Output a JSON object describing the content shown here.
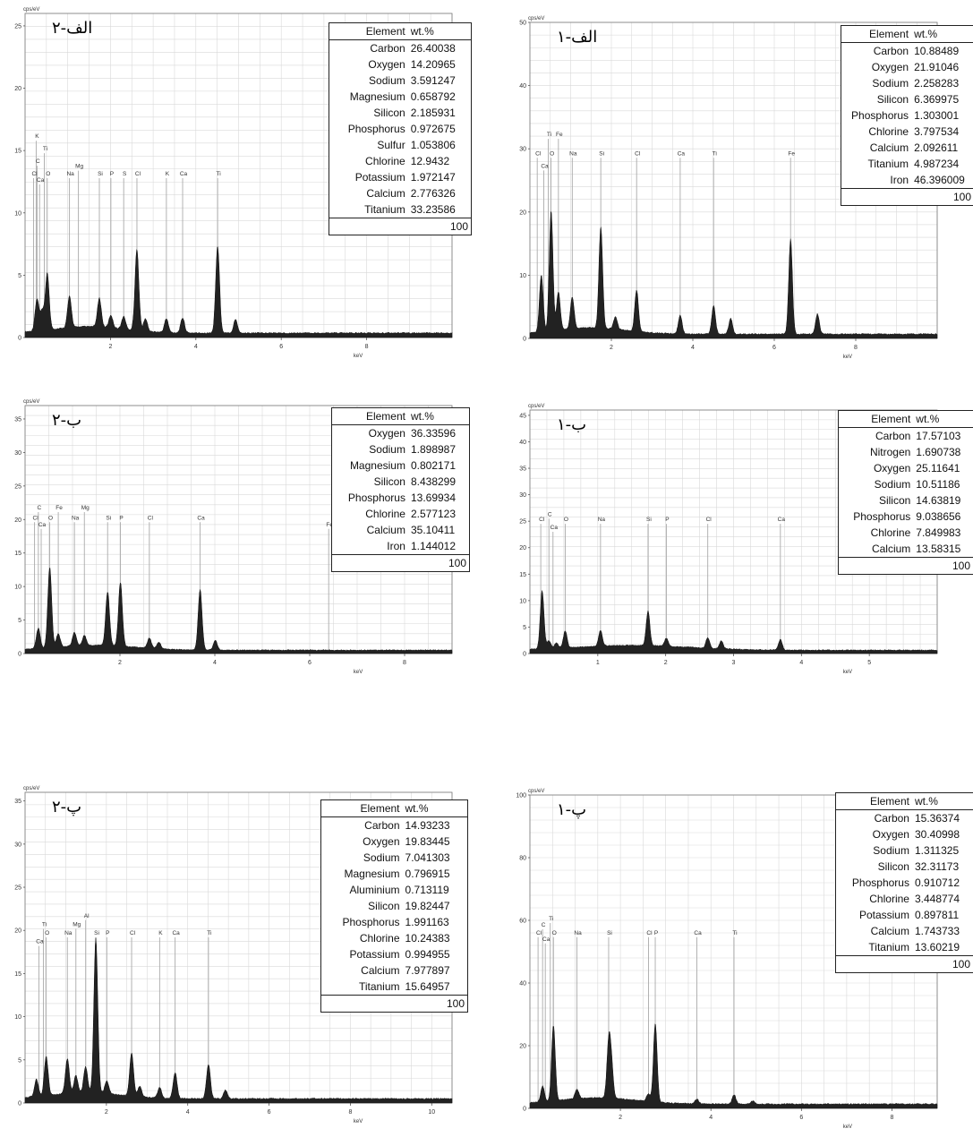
{
  "panels": [
    {
      "id": "alef-2",
      "tag": "الف-۲",
      "y_unit": "cps/eV",
      "x_unit": "keV",
      "table": {
        "header_element": "Element",
        "header_wt": "wt.%",
        "rows": [
          [
            "Carbon",
            "26.40038"
          ],
          [
            "Oxygen",
            "14.20965"
          ],
          [
            "Sodium",
            "3.591247"
          ],
          [
            "Magnesium",
            "0.658792"
          ],
          [
            "Silicon",
            "2.185931"
          ],
          [
            "Phosphorus",
            "0.972675"
          ],
          [
            "Sulfur",
            "1.053806"
          ],
          [
            "Chlorine",
            "12.9432"
          ],
          [
            "Potassium",
            "1.972147"
          ],
          [
            "Calcium",
            "2.776326"
          ],
          [
            "Titanium",
            "33.23586"
          ]
        ],
        "total": "100"
      }
    },
    {
      "id": "alef-1",
      "tag": "الف-۱",
      "y_unit": "cps/eV",
      "x_unit": "keV",
      "table": {
        "header_element": "Element",
        "header_wt": "wt.%",
        "rows": [
          [
            "Carbon",
            "10.88489"
          ],
          [
            "Oxygen",
            "21.91046"
          ],
          [
            "Sodium",
            "2.258283"
          ],
          [
            "Silicon",
            "6.369975"
          ],
          [
            "Phosphorus",
            "1.303001"
          ],
          [
            "Chlorine",
            "3.797534"
          ],
          [
            "Calcium",
            "2.092611"
          ],
          [
            "Titanium",
            "4.987234"
          ],
          [
            "Iron",
            "46.396009"
          ]
        ],
        "total": "100"
      }
    },
    {
      "id": "be-2",
      "tag": "ب-۲",
      "y_unit": "cps/eV",
      "x_unit": "keV",
      "table": {
        "header_element": "Element",
        "header_wt": "wt.%",
        "rows": [
          [
            "Oxygen",
            "36.33596"
          ],
          [
            "Sodium",
            "1.898987"
          ],
          [
            "Magnesium",
            "0.802171"
          ],
          [
            "Silicon",
            "8.438299"
          ],
          [
            "Phosphorus",
            "13.69934"
          ],
          [
            "Chlorine",
            "2.577123"
          ],
          [
            "Calcium",
            "35.10411"
          ],
          [
            "Iron",
            "1.144012"
          ]
        ],
        "total": "100"
      }
    },
    {
      "id": "be-1",
      "tag": "ب-۱",
      "y_unit": "cps/eV",
      "x_unit": "keV",
      "table": {
        "header_element": "Element",
        "header_wt": "wt.%",
        "rows": [
          [
            "Carbon",
            "17.57103"
          ],
          [
            "Nitrogen",
            "1.690738"
          ],
          [
            "Oxygen",
            "25.11641"
          ],
          [
            "Sodium",
            "10.51186"
          ],
          [
            "Silicon",
            "14.63819"
          ],
          [
            "Phosphorus",
            "9.038656"
          ],
          [
            "Chlorine",
            "7.849983"
          ],
          [
            "Calcium",
            "13.58315"
          ]
        ],
        "total": "100"
      }
    },
    {
      "id": "pe-2",
      "tag": "پ-۲",
      "y_unit": "cps/eV",
      "x_unit": "keV",
      "table": {
        "header_element": "Element",
        "header_wt": "wt.%",
        "rows": [
          [
            "Carbon",
            "14.93233"
          ],
          [
            "Oxygen",
            "19.83445"
          ],
          [
            "Sodium",
            "7.041303"
          ],
          [
            "Magnesium",
            "0.796915"
          ],
          [
            "Aluminium",
            "0.713119"
          ],
          [
            "Silicon",
            "19.82447"
          ],
          [
            "Phosphorus",
            "1.991163"
          ],
          [
            "Chlorine",
            "10.24383"
          ],
          [
            "Potassium",
            "0.994955"
          ],
          [
            "Calcium",
            "7.977897"
          ],
          [
            "Titanium",
            "15.64957"
          ]
        ],
        "total": "100"
      }
    },
    {
      "id": "pe-1",
      "tag": "پ-۱",
      "y_unit": "cps/eV",
      "x_unit": "keV",
      "table": {
        "header_element": "Element",
        "header_wt": "wt.%",
        "rows": [
          [
            "Carbon",
            "15.36374"
          ],
          [
            "Oxygen",
            "30.40998"
          ],
          [
            "Sodium",
            "1.311325"
          ],
          [
            "Silicon",
            "32.31173"
          ],
          [
            "Phosphorus",
            "0.910712"
          ],
          [
            "Chlorine",
            "3.448774"
          ],
          [
            "Potassium",
            "0.897811"
          ],
          [
            "Calcium",
            "1.743733"
          ],
          [
            "Titanium",
            "13.60219"
          ]
        ],
        "total": "100"
      }
    }
  ],
  "chart_data": [
    {
      "type": "line",
      "panel": "alef-2",
      "ylabel": "cps/eV",
      "xlabel": "keV",
      "xlim": [
        0,
        10
      ],
      "ylim": [
        0,
        26
      ],
      "grid": true,
      "x_ticks": [
        "2",
        "4",
        "6",
        "8"
      ],
      "y_ticks": [
        "0",
        "5",
        "10",
        "15",
        "20",
        "25"
      ],
      "element_markers": [
        {
          "label": "K",
          "x": 0.26,
          "y": 16
        },
        {
          "label": "Ti",
          "x": 0.45,
          "y": 15
        },
        {
          "label": "C",
          "x": 0.28,
          "y": 14
        },
        {
          "label": "Cl",
          "x": 0.2,
          "y": 13
        },
        {
          "label": "O",
          "x": 0.52,
          "y": 13
        },
        {
          "label": "Ca",
          "x": 0.34,
          "y": 12.5
        },
        {
          "label": "Na",
          "x": 1.04,
          "y": 13
        },
        {
          "label": "Mg",
          "x": 1.25,
          "y": 13.6
        },
        {
          "label": "Si",
          "x": 1.74,
          "y": 13
        },
        {
          "label": "P",
          "x": 2.01,
          "y": 13
        },
        {
          "label": "S",
          "x": 2.31,
          "y": 13
        },
        {
          "label": "Cl",
          "x": 2.62,
          "y": 13
        },
        {
          "label": "K",
          "x": 3.31,
          "y": 13
        },
        {
          "label": "Ca",
          "x": 3.69,
          "y": 13
        },
        {
          "label": "Ti",
          "x": 4.51,
          "y": 13
        }
      ],
      "peaks": [
        {
          "x": 0.28,
          "y": 2.5
        },
        {
          "x": 0.4,
          "y": 1.5
        },
        {
          "x": 0.52,
          "y": 4.5
        },
        {
          "x": 1.04,
          "y": 2.5
        },
        {
          "x": 1.74,
          "y": 2.3
        },
        {
          "x": 2.01,
          "y": 1
        },
        {
          "x": 2.31,
          "y": 1
        },
        {
          "x": 2.62,
          "y": 6.5
        },
        {
          "x": 2.82,
          "y": 1
        },
        {
          "x": 3.31,
          "y": 1.1
        },
        {
          "x": 3.69,
          "y": 1.2
        },
        {
          "x": 4.51,
          "y": 7
        },
        {
          "x": 4.93,
          "y": 1.1
        }
      ]
    },
    {
      "type": "line",
      "panel": "alef-1",
      "ylabel": "cps/eV",
      "xlabel": "keV",
      "xlim": [
        0,
        10
      ],
      "ylim": [
        0,
        50
      ],
      "grid": true,
      "x_ticks": [
        "2",
        "4",
        "6",
        "8"
      ],
      "y_ticks": [
        "0",
        "10",
        "20",
        "30",
        "40",
        "50"
      ],
      "element_markers": [
        {
          "label": "Ti",
          "x": 0.45,
          "y": 32
        },
        {
          "label": "Fe",
          "x": 0.7,
          "y": 32
        },
        {
          "label": "Cl",
          "x": 0.18,
          "y": 29
        },
        {
          "label": "O",
          "x": 0.52,
          "y": 29
        },
        {
          "label": "Ca",
          "x": 0.34,
          "y": 27
        },
        {
          "label": "Na",
          "x": 1.04,
          "y": 29
        },
        {
          "label": "Si",
          "x": 1.74,
          "y": 29
        },
        {
          "label": "Cl",
          "x": 2.62,
          "y": 29
        },
        {
          "label": "Ca",
          "x": 3.69,
          "y": 29
        },
        {
          "label": "Ti",
          "x": 4.51,
          "y": 29
        },
        {
          "label": "Fe",
          "x": 6.4,
          "y": 29
        }
      ],
      "peaks": [
        {
          "x": 0.28,
          "y": 9
        },
        {
          "x": 0.52,
          "y": 19
        },
        {
          "x": 0.7,
          "y": 6
        },
        {
          "x": 1.04,
          "y": 5
        },
        {
          "x": 1.74,
          "y": 16
        },
        {
          "x": 2.1,
          "y": 2
        },
        {
          "x": 2.62,
          "y": 6.5
        },
        {
          "x": 3.69,
          "y": 3
        },
        {
          "x": 4.51,
          "y": 4.5
        },
        {
          "x": 4.93,
          "y": 2.5
        },
        {
          "x": 6.4,
          "y": 15
        },
        {
          "x": 7.06,
          "y": 3.2
        }
      ]
    },
    {
      "type": "line",
      "panel": "be-2",
      "ylabel": "cps/eV",
      "xlabel": "keV",
      "xlim": [
        0,
        9
      ],
      "ylim": [
        0,
        37
      ],
      "grid": true,
      "x_ticks": [
        "2",
        "4",
        "6",
        "8"
      ],
      "y_ticks": [
        "0",
        "5",
        "10",
        "15",
        "20",
        "25",
        "30",
        "35"
      ],
      "element_markers": [
        {
          "label": "C",
          "x": 0.28,
          "y": 21.5
        },
        {
          "label": "Fe",
          "x": 0.7,
          "y": 21.5
        },
        {
          "label": "Mg",
          "x": 1.25,
          "y": 21.5
        },
        {
          "label": "Cl",
          "x": 0.2,
          "y": 20
        },
        {
          "label": "O",
          "x": 0.52,
          "y": 20
        },
        {
          "label": "Na",
          "x": 1.04,
          "y": 20
        },
        {
          "label": "Si",
          "x": 1.74,
          "y": 20
        },
        {
          "label": "P",
          "x": 2.01,
          "y": 20
        },
        {
          "label": "Cl",
          "x": 2.62,
          "y": 20
        },
        {
          "label": "Ca",
          "x": 3.69,
          "y": 20
        },
        {
          "label": "Ca",
          "x": 0.34,
          "y": 19
        },
        {
          "label": "Fe",
          "x": 6.4,
          "y": 19
        }
      ],
      "peaks": [
        {
          "x": 0.28,
          "y": 3
        },
        {
          "x": 0.52,
          "y": 12
        },
        {
          "x": 0.7,
          "y": 2
        },
        {
          "x": 1.04,
          "y": 2
        },
        {
          "x": 1.25,
          "y": 1.5
        },
        {
          "x": 1.74,
          "y": 8
        },
        {
          "x": 2.01,
          "y": 9.5
        },
        {
          "x": 2.62,
          "y": 1.5
        },
        {
          "x": 2.82,
          "y": 1
        },
        {
          "x": 3.69,
          "y": 9
        },
        {
          "x": 4.01,
          "y": 1.5
        }
      ]
    },
    {
      "type": "line",
      "panel": "be-1",
      "ylabel": "cps/eV",
      "xlabel": "keV",
      "xlim": [
        0,
        6
      ],
      "ylim": [
        0,
        46
      ],
      "grid": true,
      "x_ticks": [
        "1",
        "2",
        "3",
        "4",
        "5"
      ],
      "y_ticks": [
        "0",
        "5",
        "10",
        "15",
        "20",
        "25",
        "30",
        "35",
        "40",
        "45"
      ],
      "element_markers": [
        {
          "label": "C",
          "x": 0.28,
          "y": 26
        },
        {
          "label": "Cl",
          "x": 0.16,
          "y": 25
        },
        {
          "label": "O",
          "x": 0.52,
          "y": 25
        },
        {
          "label": "Na",
          "x": 1.04,
          "y": 25
        },
        {
          "label": "Si",
          "x": 1.74,
          "y": 25
        },
        {
          "label": "P",
          "x": 2.01,
          "y": 25
        },
        {
          "label": "Cl",
          "x": 2.62,
          "y": 25
        },
        {
          "label": "Ca",
          "x": 3.69,
          "y": 25
        },
        {
          "label": "Ca",
          "x": 0.34,
          "y": 23.5
        }
      ],
      "peaks": [
        {
          "x": 0.18,
          "y": 11
        },
        {
          "x": 0.28,
          "y": 1.5
        },
        {
          "x": 0.39,
          "y": 1
        },
        {
          "x": 0.52,
          "y": 3.2
        },
        {
          "x": 1.04,
          "y": 3
        },
        {
          "x": 1.74,
          "y": 6.5
        },
        {
          "x": 2.01,
          "y": 1.5
        },
        {
          "x": 2.62,
          "y": 2
        },
        {
          "x": 2.82,
          "y": 1.5
        },
        {
          "x": 3.69,
          "y": 2
        }
      ]
    },
    {
      "type": "line",
      "panel": "pe-2",
      "ylabel": "cps/eV",
      "xlabel": "keV",
      "xlim": [
        0,
        10.5
      ],
      "ylim": [
        0,
        36
      ],
      "grid": true,
      "x_ticks": [
        "2",
        "4",
        "6",
        "8",
        "10"
      ],
      "y_ticks": [
        "0",
        "5",
        "10",
        "15",
        "20",
        "25",
        "30",
        "35"
      ],
      "element_markers": [
        {
          "label": "Al",
          "x": 1.49,
          "y": 21.5
        },
        {
          "label": "Mg",
          "x": 1.25,
          "y": 20.5
        },
        {
          "label": "Ti",
          "x": 0.45,
          "y": 20.5
        },
        {
          "label": "O",
          "x": 0.52,
          "y": 19.5
        },
        {
          "label": "Na",
          "x": 1.04,
          "y": 19.5
        },
        {
          "label": "Si",
          "x": 1.74,
          "y": 19.5
        },
        {
          "label": "P",
          "x": 2.01,
          "y": 19.5
        },
        {
          "label": "Cl",
          "x": 2.62,
          "y": 19.5
        },
        {
          "label": "K",
          "x": 3.31,
          "y": 19.5
        },
        {
          "label": "Ca",
          "x": 3.69,
          "y": 19.5
        },
        {
          "label": "Ti",
          "x": 4.51,
          "y": 19.5
        },
        {
          "label": "Ca",
          "x": 0.34,
          "y": 18.5
        }
      ],
      "peaks": [
        {
          "x": 0.28,
          "y": 2
        },
        {
          "x": 0.52,
          "y": 4.5
        },
        {
          "x": 1.04,
          "y": 4
        },
        {
          "x": 1.25,
          "y": 2
        },
        {
          "x": 1.49,
          "y": 3
        },
        {
          "x": 1.74,
          "y": 18
        },
        {
          "x": 2.01,
          "y": 1.5
        },
        {
          "x": 2.62,
          "y": 5
        },
        {
          "x": 2.82,
          "y": 1.2
        },
        {
          "x": 3.31,
          "y": 1.2
        },
        {
          "x": 3.69,
          "y": 3
        },
        {
          "x": 4.51,
          "y": 4
        },
        {
          "x": 4.93,
          "y": 1
        }
      ]
    },
    {
      "type": "line",
      "panel": "pe-1",
      "ylabel": "cps/eV",
      "xlabel": "keV",
      "xlim": [
        0,
        9
      ],
      "ylim": [
        0,
        100
      ],
      "grid": true,
      "x_ticks": [
        "2",
        "4",
        "6",
        "8"
      ],
      "y_ticks": [
        "0",
        "20",
        "40",
        "60",
        "80",
        "100"
      ],
      "element_markers": [
        {
          "label": "Ti",
          "x": 0.45,
          "y": 60
        },
        {
          "label": "C",
          "x": 0.28,
          "y": 58
        },
        {
          "label": "Cl",
          "x": 0.18,
          "y": 55.5
        },
        {
          "label": "O",
          "x": 0.52,
          "y": 55.5
        },
        {
          "label": "Na",
          "x": 1.04,
          "y": 55.5
        },
        {
          "label": "Si",
          "x": 1.74,
          "y": 55.5
        },
        {
          "label": "Cl",
          "x": 2.62,
          "y": 55.5
        },
        {
          "label": "P",
          "x": 2.77,
          "y": 55.5
        },
        {
          "label": "Ca",
          "x": 3.69,
          "y": 55.5
        },
        {
          "label": "Ti",
          "x": 4.51,
          "y": 55.5
        },
        {
          "label": "Ca",
          "x": 0.34,
          "y": 53.5
        }
      ],
      "peaks": [
        {
          "x": 0.28,
          "y": 5
        },
        {
          "x": 0.52,
          "y": 24
        },
        {
          "x": 1.04,
          "y": 3
        },
        {
          "x": 1.74,
          "y": 17
        },
        {
          "x": 1.8,
          "y": 10
        },
        {
          "x": 2.62,
          "y": 2.5
        },
        {
          "x": 2.77,
          "y": 25
        },
        {
          "x": 3.69,
          "y": 1.5
        },
        {
          "x": 4.51,
          "y": 3
        },
        {
          "x": 4.93,
          "y": 1
        }
      ]
    }
  ]
}
